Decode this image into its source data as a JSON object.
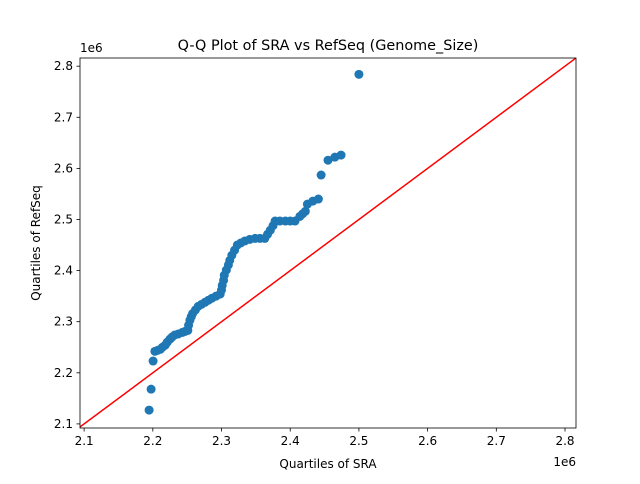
{
  "chart_data": {
    "type": "scatter",
    "title": "Q-Q Plot of SRA vs RefSeq (Genome_Size)",
    "xlabel": "Quartiles of SRA",
    "ylabel": "Quartiles of RefSeq",
    "x_offset_label": "1e6",
    "y_offset_label": "1e6",
    "xlim": [
      2.094,
      2.816
    ],
    "ylim": [
      2.092,
      2.816
    ],
    "xticks": [
      2.1,
      2.2,
      2.3,
      2.4,
      2.5,
      2.6,
      2.7,
      2.8
    ],
    "yticks": [
      2.1,
      2.2,
      2.3,
      2.4,
      2.5,
      2.6,
      2.7,
      2.8
    ],
    "grid": false,
    "point_color": "#1f77b4",
    "reference_line": {
      "type": "y=x",
      "color": "#ff0000"
    },
    "points": [
      [
        2.1946,
        2.127
      ],
      [
        2.1975,
        2.168
      ],
      [
        2.2004,
        2.223
      ],
      [
        2.203,
        2.242
      ],
      [
        2.207,
        2.244
      ],
      [
        2.211,
        2.246
      ],
      [
        2.214,
        2.25
      ],
      [
        2.218,
        2.254
      ],
      [
        2.221,
        2.26
      ],
      [
        2.225,
        2.266
      ],
      [
        2.228,
        2.27
      ],
      [
        2.232,
        2.274
      ],
      [
        2.237,
        2.276
      ],
      [
        2.243,
        2.279
      ],
      [
        2.247,
        2.281
      ],
      [
        2.251,
        2.283
      ],
      [
        2.252,
        2.293
      ],
      [
        2.254,
        2.303
      ],
      [
        2.256,
        2.31
      ],
      [
        2.258,
        2.316
      ],
      [
        2.262,
        2.323
      ],
      [
        2.266,
        2.33
      ],
      [
        2.271,
        2.334
      ],
      [
        2.276,
        2.338
      ],
      [
        2.281,
        2.342
      ],
      [
        2.286,
        2.346
      ],
      [
        2.292,
        2.35
      ],
      [
        2.298,
        2.354
      ],
      [
        2.3,
        2.362
      ],
      [
        2.301,
        2.371
      ],
      [
        2.303,
        2.381
      ],
      [
        2.304,
        2.391
      ],
      [
        2.307,
        2.401
      ],
      [
        2.31,
        2.411
      ],
      [
        2.312,
        2.42
      ],
      [
        2.315,
        2.43
      ],
      [
        2.319,
        2.44
      ],
      [
        2.323,
        2.45
      ],
      [
        2.328,
        2.454
      ],
      [
        2.334,
        2.458
      ],
      [
        2.341,
        2.461
      ],
      [
        2.349,
        2.463
      ],
      [
        2.356,
        2.463
      ],
      [
        2.363,
        2.463
      ],
      [
        2.367,
        2.471
      ],
      [
        2.371,
        2.479
      ],
      [
        2.375,
        2.488
      ],
      [
        2.378,
        2.497
      ],
      [
        2.385,
        2.497
      ],
      [
        2.393,
        2.497
      ],
      [
        2.4,
        2.497
      ],
      [
        2.407,
        2.497
      ],
      [
        2.414,
        2.506
      ],
      [
        2.418,
        2.511
      ],
      [
        2.422,
        2.516
      ],
      [
        2.425,
        2.53
      ],
      [
        2.433,
        2.536
      ],
      [
        2.441,
        2.54
      ],
      [
        2.445,
        2.587
      ],
      [
        2.455,
        2.616
      ],
      [
        2.465,
        2.622
      ],
      [
        2.474,
        2.626
      ],
      [
        2.5,
        2.784
      ]
    ]
  }
}
